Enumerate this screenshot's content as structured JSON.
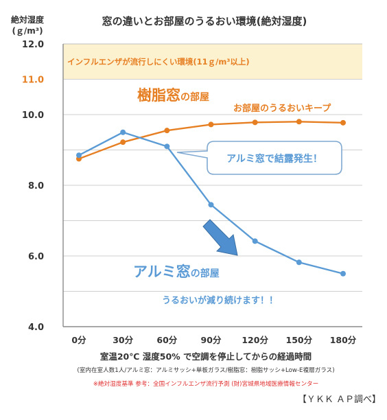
{
  "chart_data": {
    "type": "line",
    "title": "窓の違いとお部屋のうるおい環境(絶対湿度)",
    "ylabel_line1": "絶対湿度",
    "ylabel_line2": "(ｇ/m³)",
    "xlabel": "室温20℃ 湿度50% で空調を停止してからの経過時間",
    "subnote": "(室内在室人数1人/アルミ窓：アルミサッシ+単板ガラス/樹脂窓：樹脂サッシ+Low-E複層ガラス)",
    "footnote": "※絶対湿度基準 参考：全国インフルエンザ流行予測 (財)宮城県地域医療情報センター",
    "credit": "【ＹＫＫ ＡＰ調べ】",
    "categories": [
      "0分",
      "30分",
      "60分",
      "90分",
      "120分",
      "150分",
      "180分"
    ],
    "ylim": [
      4.0,
      12.0
    ],
    "y_ticks": [
      "4.0",
      "6.0",
      "8.0",
      "10.0",
      "11.0",
      "12.0"
    ],
    "series": [
      {
        "name": "樹脂窓の部屋",
        "color": "#e67e22",
        "values": [
          8.75,
          9.22,
          9.55,
          9.72,
          9.78,
          9.8,
          9.77
        ]
      },
      {
        "name": "アルミ窓の部屋",
        "color": "#5b9bd5",
        "values": [
          8.85,
          9.5,
          9.1,
          7.45,
          6.42,
          5.82,
          5.5
        ]
      }
    ],
    "band": {
      "from": 11.0,
      "to": 12.0,
      "label": "インフルエンザが流行しにくい環境(11ｇ/m³以上)",
      "color": "#fdf2d0"
    },
    "annotations": {
      "resin_title_main": "樹脂窓",
      "resin_title_suffix": "の部屋",
      "resin_keep": "お部屋のうるおいキープ",
      "alu_title_main": "アルミ窓",
      "alu_title_suffix": "の部屋",
      "alu_decrease": "うるおいが減り続けます！！",
      "condensation": "アルミ窓で結露発生！"
    }
  }
}
